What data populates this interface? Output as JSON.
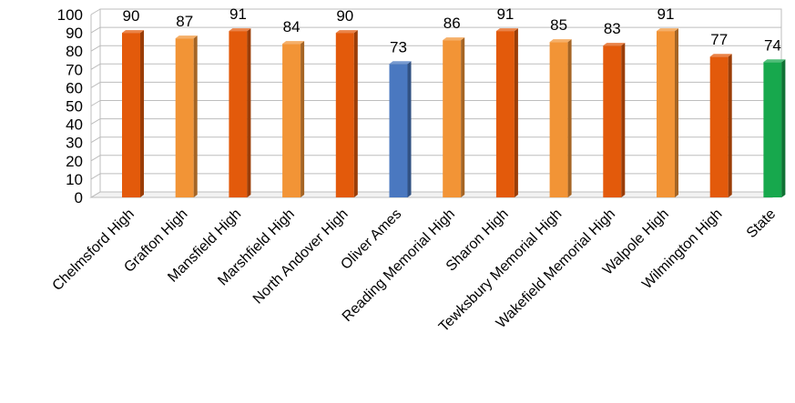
{
  "chart_data": {
    "type": "bar",
    "categories": [
      "Chelmsford High",
      "Grafton High",
      "Mansfield High",
      "Marshfield High",
      "North Andover High",
      "Oliver Ames",
      "Reading Memorial High",
      "Sharon High",
      "Tewksbury Memorial High",
      "Wakefield Memorial High",
      "Walpole High",
      "Wilmington High",
      "State"
    ],
    "values": [
      90,
      87,
      91,
      84,
      90,
      73,
      86,
      91,
      85,
      83,
      91,
      77,
      74
    ],
    "bar_colors": [
      "#e35a0b",
      "#f29436",
      "#e35a0b",
      "#f29436",
      "#e35a0b",
      "#4a78c0",
      "#f29436",
      "#e35a0b",
      "#f29436",
      "#e35a0b",
      "#f29436",
      "#e35a0b",
      "#17a84d"
    ],
    "title": "",
    "xlabel": "",
    "ylabel": "",
    "ylim": [
      0,
      100
    ],
    "yticks": [
      0,
      10,
      20,
      30,
      40,
      50,
      60,
      70,
      80,
      90,
      100
    ],
    "grid": true,
    "data_labels": true,
    "style": "3d"
  }
}
